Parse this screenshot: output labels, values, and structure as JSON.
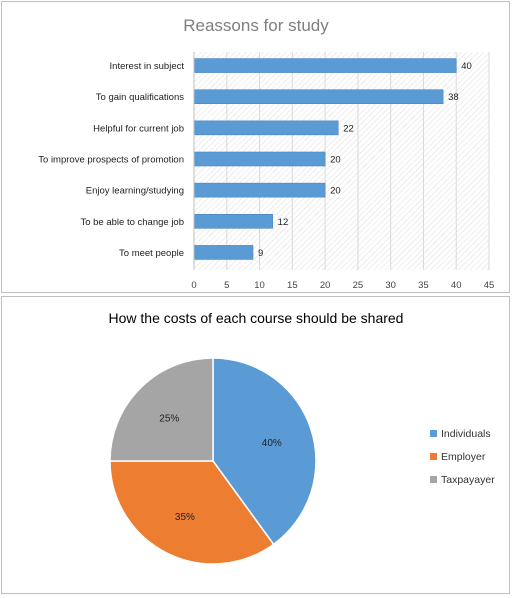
{
  "chart_data": [
    {
      "type": "bar",
      "orientation": "horizontal",
      "title": "Reassons for study",
      "categories": [
        "Interest in subject",
        "To gain qualifications",
        "Helpful for current job",
        "To improve prospects of promotion",
        "Enjoy learning/studying",
        "To be able to change job",
        "To meet people"
      ],
      "values": [
        40,
        38,
        22,
        20,
        20,
        12,
        9
      ],
      "xlim": [
        0,
        45
      ],
      "xticks": [
        "0",
        "5",
        "10",
        "15",
        "20",
        "25",
        "30",
        "35",
        "40",
        "45"
      ],
      "color": "#5b9bd5",
      "grid": true
    },
    {
      "type": "pie",
      "title": "How the costs of each course should be shared",
      "slices": [
        {
          "label": "Individuals",
          "value": 40,
          "text": "40%",
          "color": "#5b9bd5"
        },
        {
          "label": "Employer",
          "value": 35,
          "text": "35%",
          "color": "#ed7d31"
        },
        {
          "label": "Taxpayayer",
          "value": 25,
          "text": "25%",
          "color": "#a5a5a5"
        }
      ],
      "legend": "right"
    }
  ]
}
